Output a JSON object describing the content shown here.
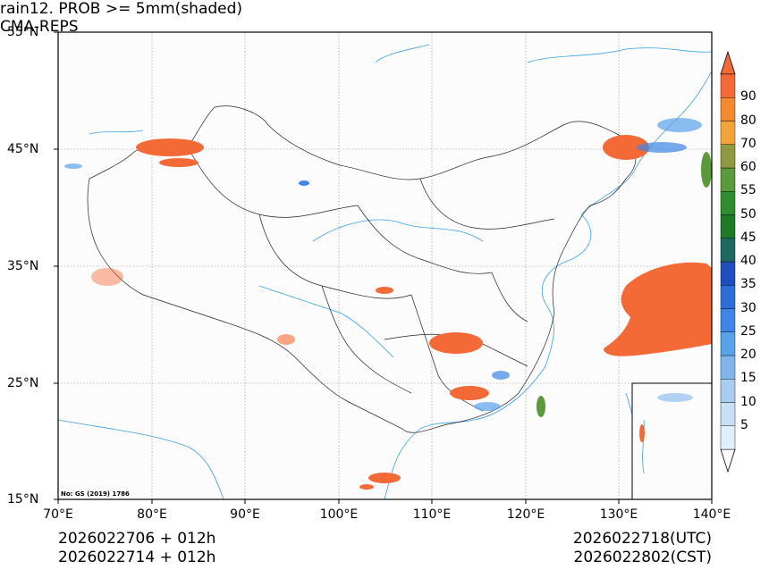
{
  "title_left": "rain12. PROB >= 5mm(shaded)",
  "title_right": "CMA-REPS",
  "map_code": "No: GS (2019) 1786",
  "lat_ticks": [
    "55°N",
    "45°N",
    "35°N",
    "25°N",
    "15°N"
  ],
  "lon_ticks": [
    "70°E",
    "80°E",
    "90°E",
    "100°E",
    "110°E",
    "120°E",
    "130°E",
    "140°E"
  ],
  "colorbar": {
    "levels": [
      "5",
      "10",
      "15",
      "20",
      "25",
      "30",
      "35",
      "40",
      "45",
      "50",
      "55",
      "60",
      "70",
      "80",
      "90"
    ],
    "colors": [
      "#e1eefb",
      "#c8dff5",
      "#a7cdf0",
      "#7fb6ec",
      "#58a2ea",
      "#3d86e6",
      "#2b6fd6",
      "#1f4fbe",
      "#1f6a60",
      "#1f7a28",
      "#2f8f2f",
      "#5a9a3c",
      "#8f9a40",
      "#f2a43a",
      "#f28a2e",
      "#f36a36"
    ]
  },
  "footer": {
    "left_line1": "2026022706  +  012h",
    "left_line2": "2026022714  +  012h",
    "right_line1": "2026022718(UTC)",
    "right_line2": "2026022802(CST)"
  }
}
